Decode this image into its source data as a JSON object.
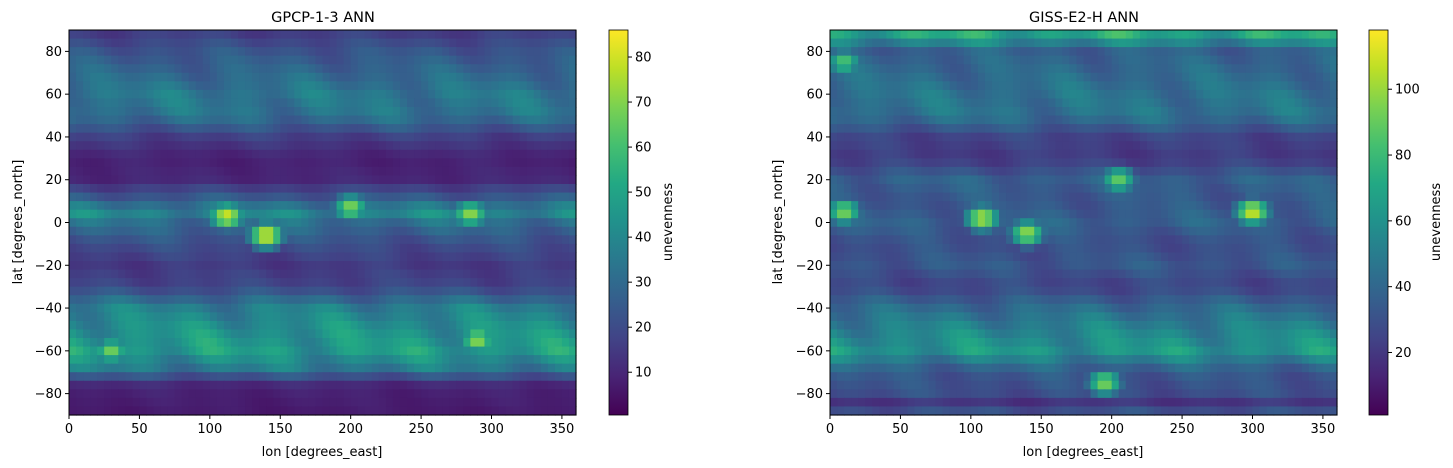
{
  "chart_data": [
    {
      "type": "heatmap",
      "title": "GPCP-1-3 ANN",
      "xlabel": "lon [degrees_east]",
      "ylabel": "lat [degrees_north]",
      "xlim": [
        0,
        360
      ],
      "ylim": [
        -90,
        90
      ],
      "xticks": [
        0,
        50,
        100,
        150,
        200,
        250,
        300,
        350
      ],
      "yticks": [
        -80,
        -60,
        -40,
        -20,
        0,
        20,
        40,
        60,
        80
      ],
      "colorbar": {
        "label": "unevenness",
        "colormap": "viridis",
        "range": [
          0.5,
          86
        ],
        "ticks": [
          10,
          20,
          30,
          40,
          50,
          60,
          70,
          80
        ]
      },
      "grid": false,
      "zonal_profile": {
        "lat": [
          -90,
          -80,
          -74,
          -70,
          -60,
          -50,
          -40,
          -30,
          -20,
          -10,
          0,
          5,
          10,
          20,
          30,
          40,
          50,
          60,
          70,
          80,
          90
        ],
        "value": [
          8,
          10,
          14,
          40,
          57,
          53,
          45,
          22,
          18,
          25,
          38,
          50,
          33,
          12,
          10,
          20,
          40,
          42,
          35,
          28,
          18
        ]
      },
      "hotspots": [
        {
          "lon": 112,
          "lat": 3,
          "value": 80
        },
        {
          "lon": 140,
          "lat": -6,
          "value": 82
        },
        {
          "lon": 200,
          "lat": 7,
          "value": 70
        },
        {
          "lon": 285,
          "lat": 4,
          "value": 72
        },
        {
          "lon": 30,
          "lat": -60,
          "value": 68
        },
        {
          "lon": 290,
          "lat": -55,
          "value": 72
        }
      ]
    },
    {
      "type": "heatmap",
      "title": "GISS-E2-H ANN",
      "xlabel": "lon [degrees_east]",
      "ylabel": "lat [degrees_north]",
      "xlim": [
        0,
        360
      ],
      "ylim": [
        -90,
        90
      ],
      "xticks": [
        0,
        50,
        100,
        150,
        200,
        250,
        300,
        350
      ],
      "yticks": [
        -80,
        -60,
        -40,
        -20,
        0,
        20,
        40,
        60,
        80
      ],
      "colorbar": {
        "label": "unevenness",
        "colormap": "viridis",
        "range": [
          1,
          118
        ],
        "ticks": [
          20,
          40,
          60,
          80,
          100
        ]
      },
      "grid": false,
      "zonal_profile": {
        "lat": [
          -90,
          -85,
          -80,
          -70,
          -60,
          -50,
          -40,
          -30,
          -20,
          -10,
          0,
          10,
          20,
          30,
          40,
          50,
          60,
          70,
          80,
          88,
          90
        ],
        "value": [
          45,
          20,
          35,
          40,
          75,
          65,
          50,
          30,
          40,
          35,
          45,
          40,
          45,
          25,
          30,
          55,
          55,
          50,
          45,
          85,
          85
        ]
      },
      "hotspots": [
        {
          "lon": 108,
          "lat": 2,
          "value": 105
        },
        {
          "lon": 140,
          "lat": -5,
          "value": 100
        },
        {
          "lon": 300,
          "lat": 5,
          "value": 110
        },
        {
          "lon": 10,
          "lat": 5,
          "value": 95
        },
        {
          "lon": 205,
          "lat": 20,
          "value": 90
        },
        {
          "lon": 195,
          "lat": -75,
          "value": 95
        },
        {
          "lon": 10,
          "lat": 75,
          "value": 85
        }
      ]
    }
  ]
}
